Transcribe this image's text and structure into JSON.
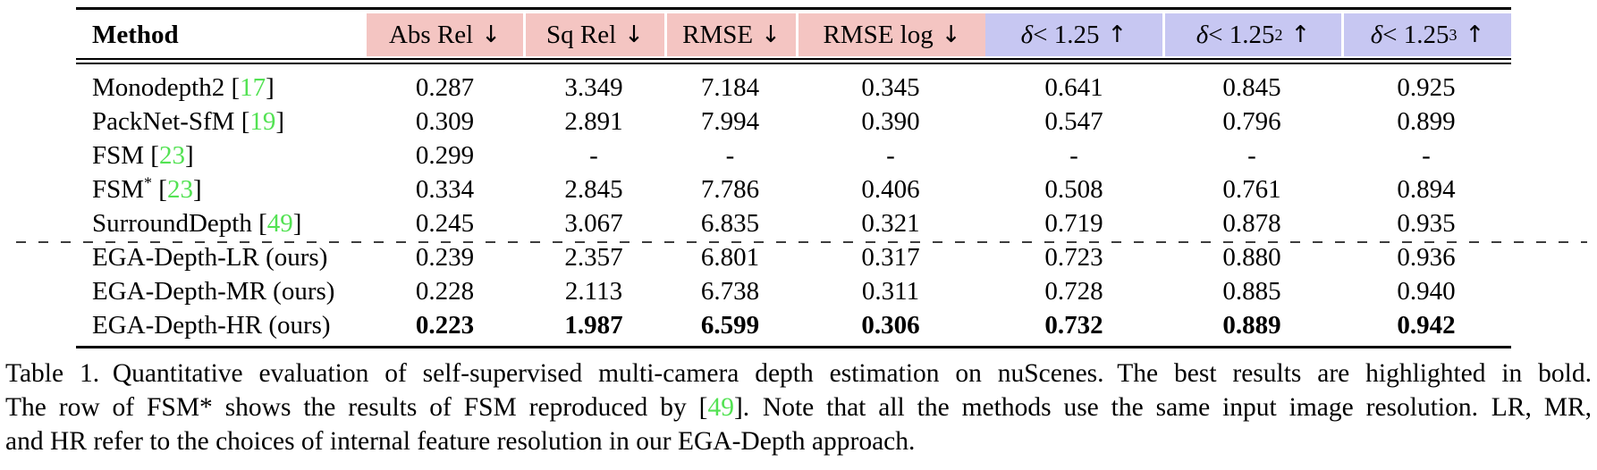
{
  "palette": {
    "error_header_bg": "#f4c5c2",
    "accuracy_header_bg": "#c7c7f2",
    "citation_green": "#53e253",
    "rule_black": "#000000"
  },
  "table": {
    "method_label": "Method",
    "columns": [
      {
        "key": "abs-rel",
        "text": "Abs Rel",
        "sym": null,
        "sup": null,
        "arrow": "↓",
        "group": "error"
      },
      {
        "key": "sq-rel",
        "text": "Sq Rel",
        "sym": null,
        "sup": null,
        "arrow": "↓",
        "group": "error"
      },
      {
        "key": "rmse",
        "text": "RMSE",
        "sym": null,
        "sup": null,
        "arrow": "↓",
        "group": "error"
      },
      {
        "key": "rmse-log",
        "text": "RMSE log",
        "sym": null,
        "sup": null,
        "arrow": "↓",
        "group": "error"
      },
      {
        "key": "delta-1",
        "text": "< 1.25",
        "sym": "δ",
        "sup": null,
        "arrow": "↑",
        "group": "accuracy"
      },
      {
        "key": "delta-2",
        "text": "< 1.25",
        "sym": "δ",
        "sup": "2",
        "arrow": "↑",
        "group": "accuracy"
      },
      {
        "key": "delta-3",
        "text": "< 1.25",
        "sym": "δ",
        "sup": "3",
        "arrow": "↑",
        "group": "accuracy"
      }
    ],
    "rows": [
      {
        "method": "Monodepth2",
        "sup": null,
        "cite": "17",
        "bold_values": false,
        "values": [
          "0.287",
          "3.349",
          "7.184",
          "0.345",
          "0.641",
          "0.845",
          "0.925"
        ]
      },
      {
        "method": "PackNet-SfM",
        "sup": null,
        "cite": "19",
        "bold_values": false,
        "values": [
          "0.309",
          "2.891",
          "7.994",
          "0.390",
          "0.547",
          "0.796",
          "0.899"
        ]
      },
      {
        "method": "FSM",
        "sup": null,
        "cite": "23",
        "bold_values": false,
        "values": [
          "0.299",
          "-",
          "-",
          "-",
          "-",
          "-",
          "-"
        ]
      },
      {
        "method": "FSM",
        "sup": "*",
        "cite": "23",
        "bold_values": false,
        "values": [
          "0.334",
          "2.845",
          "7.786",
          "0.406",
          "0.508",
          "0.761",
          "0.894"
        ]
      },
      {
        "method": "SurroundDepth",
        "sup": null,
        "cite": "49",
        "bold_values": false,
        "values": [
          "0.245",
          "3.067",
          "6.835",
          "0.321",
          "0.719",
          "0.878",
          "0.935"
        ]
      },
      {
        "method": "EGA-Depth-LR (ours)",
        "sup": null,
        "cite": null,
        "bold_values": false,
        "values": [
          "0.239",
          "2.357",
          "6.801",
          "0.317",
          "0.723",
          "0.880",
          "0.936"
        ]
      },
      {
        "method": "EGA-Depth-MR (ours)",
        "sup": null,
        "cite": null,
        "bold_values": false,
        "values": [
          "0.228",
          "2.113",
          "6.738",
          "0.311",
          "0.728",
          "0.885",
          "0.940"
        ]
      },
      {
        "method": "EGA-Depth-HR (ours)",
        "sup": null,
        "cite": null,
        "bold_values": true,
        "values": [
          "0.223",
          "1.987",
          "6.599",
          "0.306",
          "0.732",
          "0.889",
          "0.942"
        ]
      }
    ],
    "dashed_divider_after_row": 5
  },
  "caption": {
    "line1": "Table 1. Quantitative evaluation of self-supervised multi-camera depth estimation on nuScenes. The best results are highlighted in bold.",
    "line2_pre": "The row of FSM* shows the results of FSM reproduced by [",
    "line2_cite": "49",
    "line2_post": "]. Note that all the methods use the same input image resolution. LR, MR,",
    "line3": "and HR refer to the choices of internal feature resolution in our EGA-Depth approach."
  }
}
